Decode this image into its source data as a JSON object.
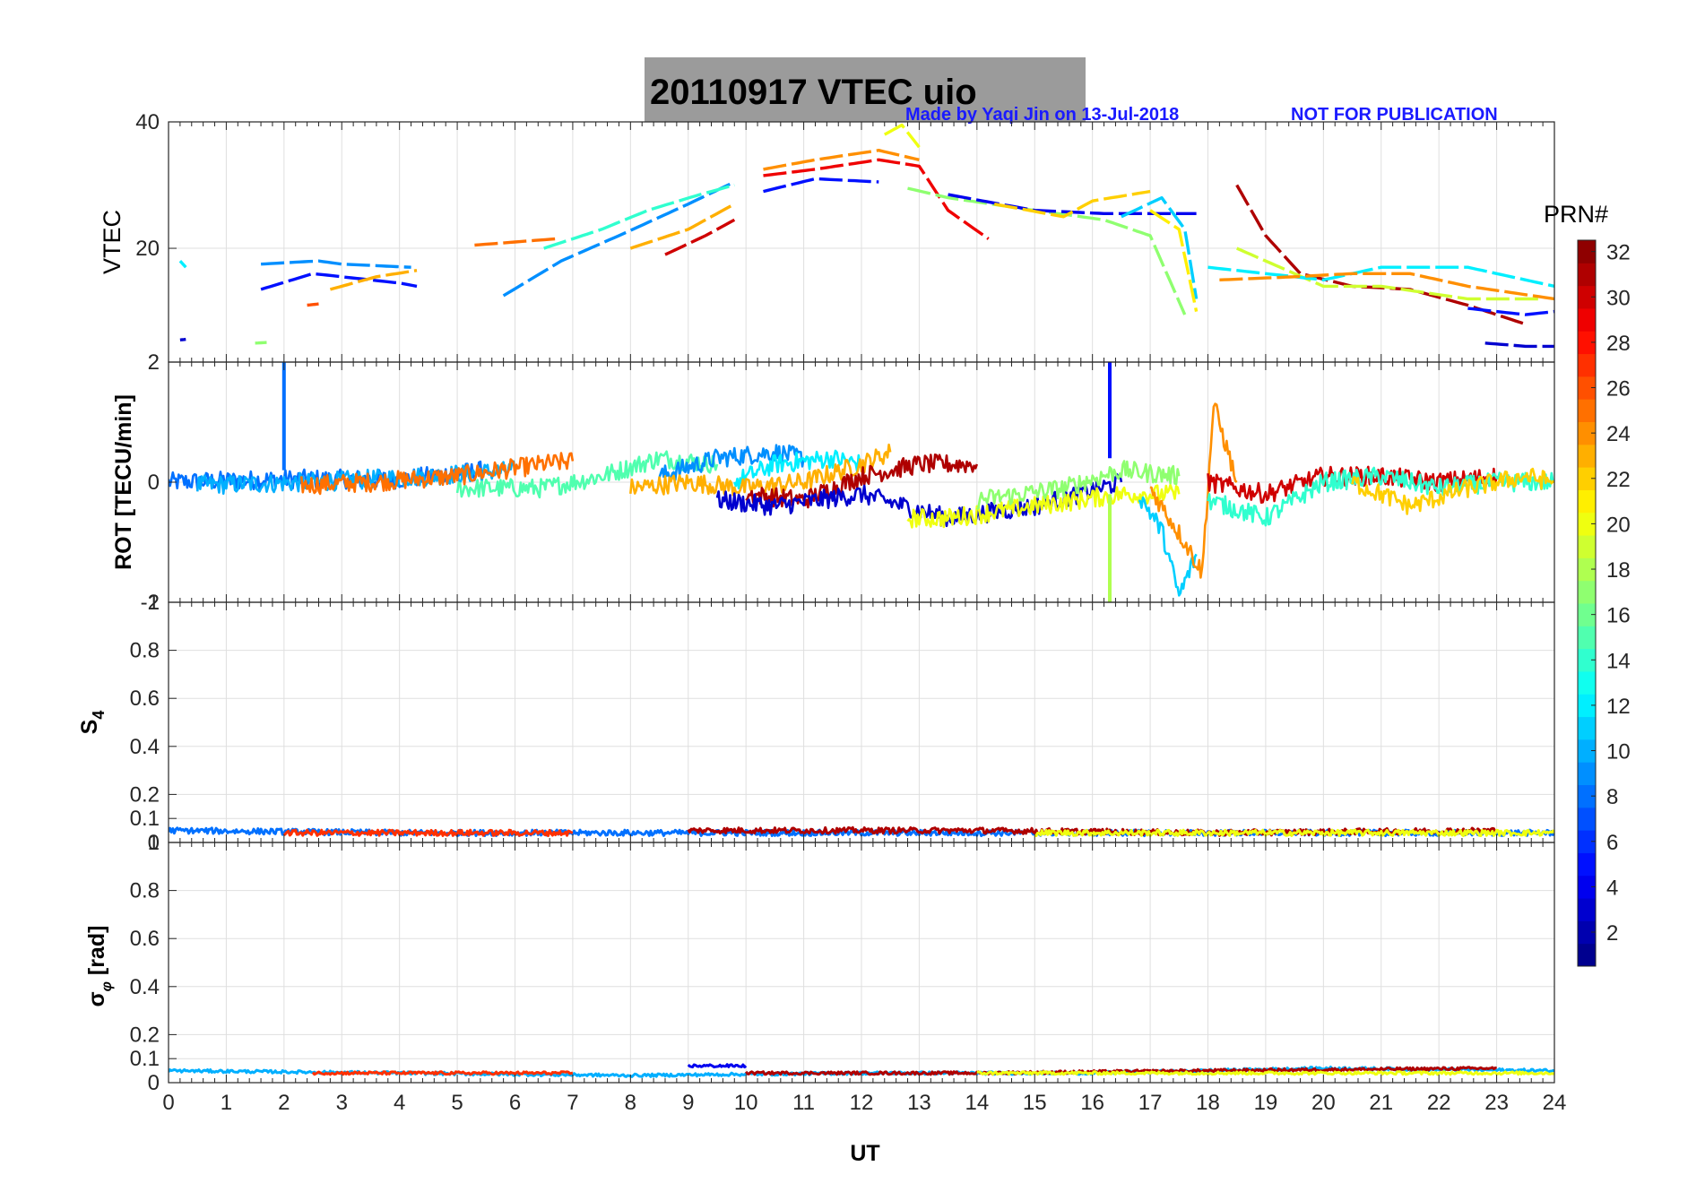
{
  "chart_data": [
    {
      "type": "line",
      "panel": "vtec",
      "title": "20110917    VTEC  uio",
      "annotation_left": "Made by Yaqi Jin on 13-Jul-2018",
      "annotation_right": "NOT FOR PUBLICATION",
      "ylabel": "VTEC",
      "ylim": [
        2,
        40
      ],
      "yticks": [
        20,
        40
      ],
      "xlim": [
        0,
        24
      ],
      "colorbar": {
        "label": "PRN#",
        "range": [
          1,
          32
        ],
        "ticks": [
          2,
          4,
          6,
          8,
          10,
          12,
          14,
          16,
          18,
          20,
          22,
          24,
          26,
          28,
          30,
          32
        ]
      },
      "series": [
        {
          "prn": 3,
          "x": [
            0.2,
            0.3
          ],
          "y": [
            5.5,
            5.6
          ]
        },
        {
          "prn": 12,
          "x": [
            0.2,
            0.3
          ],
          "y": [
            18,
            17
          ]
        },
        {
          "prn": 5,
          "x": [
            1.6,
            2.5,
            3.0,
            4.0,
            4.3
          ],
          "y": [
            13.5,
            16,
            15.5,
            14.5,
            14
          ]
        },
        {
          "prn": 9,
          "x": [
            1.6,
            2.6,
            3.0,
            4.2
          ],
          "y": [
            17.5,
            18,
            17.5,
            17
          ]
        },
        {
          "prn": 23,
          "x": [
            2.8,
            3.6,
            4.3
          ],
          "y": [
            13.5,
            15.5,
            16.5
          ]
        },
        {
          "prn": 26,
          "x": [
            2.4,
            2.6
          ],
          "y": [
            11,
            11.2
          ]
        },
        {
          "prn": 17,
          "x": [
            1.5,
            1.7
          ],
          "y": [
            5,
            5.1
          ]
        },
        {
          "prn": 25,
          "x": [
            5.3,
            6.0,
            6.7
          ],
          "y": [
            20.5,
            21,
            21.5
          ]
        },
        {
          "prn": 9,
          "x": [
            5.8,
            6.8,
            7.8,
            9.0,
            9.8
          ],
          "y": [
            12.5,
            18,
            22,
            27,
            30.5
          ]
        },
        {
          "prn": 14,
          "x": [
            6.5,
            7.5,
            8.3,
            9.2,
            9.8
          ],
          "y": [
            20,
            23,
            26,
            28.5,
            30
          ]
        },
        {
          "prn": 30,
          "x": [
            8.6,
            9.3,
            9.8
          ],
          "y": [
            19,
            22,
            24.5
          ]
        },
        {
          "prn": 23,
          "x": [
            8.0,
            9.0,
            9.8
          ],
          "y": [
            20,
            23,
            27
          ]
        },
        {
          "prn": 5,
          "x": [
            10.3,
            11.2,
            12.3
          ],
          "y": [
            29,
            31,
            30.5
          ]
        },
        {
          "prn": 29,
          "x": [
            10.3,
            11.2,
            12.3,
            13.0,
            13.5,
            14.2
          ],
          "y": [
            31.5,
            32.5,
            34,
            33,
            26,
            21.5
          ]
        },
        {
          "prn": 24,
          "x": [
            10.3,
            11.2,
            12.3,
            13.0
          ],
          "y": [
            32.5,
            34,
            35.5,
            34
          ]
        },
        {
          "prn": 20,
          "x": [
            12.4,
            12.7,
            13.0
          ],
          "y": [
            38,
            39.5,
            36
          ]
        },
        {
          "prn": 17,
          "x": [
            12.8,
            13.5,
            15.0,
            16.2,
            17.0,
            17.6
          ],
          "y": [
            29.5,
            28,
            26,
            24.5,
            22,
            9.5
          ]
        },
        {
          "prn": 4,
          "x": [
            13.5,
            15.0,
            16.2,
            17.8
          ],
          "y": [
            28.5,
            26,
            25.5,
            25.5
          ]
        },
        {
          "prn": 22,
          "x": [
            14.3,
            15.5,
            16.0,
            17.0
          ],
          "y": [
            27,
            25,
            27.5,
            29
          ]
        },
        {
          "prn": 11,
          "x": [
            16.5,
            17.2,
            17.6,
            17.8
          ],
          "y": [
            25,
            28,
            23,
            12
          ]
        },
        {
          "prn": 21,
          "x": [
            17.0,
            17.5,
            17.8
          ],
          "y": [
            26,
            23,
            10
          ]
        },
        {
          "prn": 31,
          "x": [
            18.5,
            19.0,
            19.6,
            20.5,
            21.5,
            22.5,
            23.5
          ],
          "y": [
            30,
            22,
            16,
            14,
            13.5,
            11,
            8
          ]
        },
        {
          "prn": 19,
          "x": [
            18.5,
            19.0,
            20.0,
            21.0,
            22.5,
            23.8
          ],
          "y": [
            20,
            18,
            14,
            14,
            12,
            12
          ]
        },
        {
          "prn": 12,
          "x": [
            18.0,
            19.0,
            20.0,
            21.0,
            22.5,
            24.0
          ],
          "y": [
            17,
            16,
            15,
            17,
            17,
            14
          ]
        },
        {
          "prn": 24,
          "x": [
            18.2,
            19.5,
            20.5,
            21.5,
            22.5,
            24.0
          ],
          "y": [
            15,
            15.5,
            16,
            16,
            14,
            12
          ]
        },
        {
          "prn": 5,
          "x": [
            22.5,
            23.5,
            24.0
          ],
          "y": [
            10.5,
            9.5,
            10
          ]
        },
        {
          "prn": 3,
          "x": [
            22.8,
            23.5,
            24.0
          ],
          "y": [
            5,
            4.5,
            4.5
          ]
        }
      ]
    },
    {
      "type": "line",
      "panel": "rot",
      "ylabel": "ROT [TECU/min]",
      "ylim": [
        -2,
        2
      ],
      "yticks": [
        -2,
        0,
        2
      ],
      "xlim": [
        0,
        24
      ],
      "series": [
        {
          "prn": 8,
          "x": [
            0.0,
            2.0,
            4.0,
            5.5
          ],
          "y": [
            0.0,
            0.05,
            0.05,
            0.2
          ]
        },
        {
          "prn": 10,
          "x": [
            0.5,
            2.5,
            4.5,
            6.0
          ],
          "y": [
            -0.05,
            0.0,
            0.1,
            0.2
          ]
        },
        {
          "prn": 25,
          "x": [
            2.3,
            3.5,
            5.0,
            6.5,
            7.0
          ],
          "y": [
            -0.05,
            0.0,
            0.1,
            0.3,
            0.35
          ]
        },
        {
          "prn": 15,
          "x": [
            5.0,
            6.5,
            7.5,
            8.5,
            9.5
          ],
          "y": [
            -0.1,
            -0.1,
            0.1,
            0.4,
            0.3
          ]
        },
        {
          "prn": 9,
          "x": [
            8.5,
            9.5,
            10.5,
            11.0
          ],
          "y": [
            0.1,
            0.4,
            0.5,
            0.4
          ]
        },
        {
          "prn": 12,
          "x": [
            9.8,
            10.5,
            11.5,
            12.0
          ],
          "y": [
            0.0,
            0.3,
            0.4,
            0.3
          ]
        },
        {
          "prn": 23,
          "x": [
            8.0,
            9.0,
            10.0,
            11.0,
            12.0,
            12.5
          ],
          "y": [
            -0.1,
            0.0,
            -0.1,
            0.0,
            0.3,
            0.5
          ]
        },
        {
          "prn": 31,
          "x": [
            10.0,
            11.0,
            12.0,
            13.0,
            14.0
          ],
          "y": [
            -0.2,
            -0.3,
            0.1,
            0.3,
            0.3
          ]
        },
        {
          "prn": 3,
          "x": [
            9.5,
            10.5,
            12.0,
            13.5,
            15.0,
            16.5
          ],
          "y": [
            -0.3,
            -0.4,
            -0.2,
            -0.6,
            -0.4,
            0.0
          ]
        },
        {
          "prn": 20,
          "x": [
            12.8,
            13.5,
            15.0,
            16.5,
            17.5
          ],
          "y": [
            -0.6,
            -0.6,
            -0.4,
            -0.2,
            -0.2
          ]
        },
        {
          "prn": 17,
          "x": [
            14.0,
            15.5,
            16.5,
            17.5
          ],
          "y": [
            -0.3,
            -0.1,
            0.2,
            0.1
          ]
        },
        {
          "prn": 11,
          "x": [
            16.8,
            17.2,
            17.5,
            17.8
          ],
          "y": [
            -0.2,
            -0.8,
            -1.9,
            -1.2
          ]
        },
        {
          "prn": 24,
          "x": [
            17.0,
            17.6,
            17.9,
            18.1,
            18.5
          ],
          "y": [
            -0.1,
            -1.0,
            -1.5,
            1.3,
            0.0
          ]
        },
        {
          "prn": 30,
          "x": [
            18.0,
            19.0,
            20.0,
            21.0,
            22.0,
            23.0
          ],
          "y": [
            0.0,
            -0.2,
            0.1,
            0.1,
            0.0,
            0.1
          ]
        },
        {
          "prn": 14,
          "x": [
            18.0,
            19.0,
            20.0,
            21.0,
            22.0,
            23.0,
            24.0
          ],
          "y": [
            -0.3,
            -0.6,
            0.0,
            0.1,
            -0.1,
            0.0,
            0.0
          ]
        },
        {
          "prn": 22,
          "x": [
            20.5,
            21.5,
            22.5,
            23.5,
            24.0
          ],
          "y": [
            0.0,
            -0.4,
            -0.1,
            0.1,
            0.0
          ]
        },
        {
          "prn": 8,
          "x": [
            2.0,
            2.0
          ],
          "y": [
            0.2,
            2.0
          ]
        },
        {
          "prn": 5,
          "x": [
            16.3,
            16.3
          ],
          "y": [
            0.4,
            2.0
          ]
        },
        {
          "prn": 18,
          "x": [
            16.3,
            16.3
          ],
          "y": [
            -0.2,
            -2.0
          ]
        }
      ]
    },
    {
      "type": "line",
      "panel": "s4",
      "ylabel": "S4",
      "ylim": [
        0,
        1
      ],
      "yticks": [
        0,
        0.1,
        0.2,
        0.4,
        0.6,
        0.8,
        1
      ],
      "xlim": [
        0,
        24
      ],
      "series": [
        {
          "prn": 8,
          "x": [
            0.0,
            4.0,
            8.0,
            12.0,
            16.0,
            20.0,
            24.0
          ],
          "y": [
            0.05,
            0.04,
            0.04,
            0.04,
            0.04,
            0.04,
            0.04
          ]
        },
        {
          "prn": 27,
          "x": [
            2.0,
            7.0
          ],
          "y": [
            0.04,
            0.04
          ]
        },
        {
          "prn": 31,
          "x": [
            9.0,
            14.0,
            18.0,
            23.0
          ],
          "y": [
            0.05,
            0.05,
            0.04,
            0.05
          ]
        },
        {
          "prn": 20,
          "x": [
            15.0,
            24.0
          ],
          "y": [
            0.04,
            0.04
          ]
        }
      ]
    },
    {
      "type": "line",
      "panel": "sigma_phi",
      "ylabel": "σφ [rad]",
      "xlabel": "UT",
      "ylim": [
        0,
        1
      ],
      "yticks": [
        0,
        0.1,
        0.2,
        0.4,
        0.6,
        0.8,
        1
      ],
      "xlim": [
        0,
        24
      ],
      "xticks": [
        0,
        1,
        2,
        3,
        4,
        5,
        6,
        7,
        8,
        9,
        10,
        11,
        12,
        13,
        14,
        15,
        16,
        17,
        18,
        19,
        20,
        21,
        22,
        23,
        24
      ],
      "series": [
        {
          "prn": 10,
          "x": [
            0.0,
            4.0,
            8.0,
            12.0,
            16.0,
            20.0,
            24.0
          ],
          "y": [
            0.05,
            0.04,
            0.03,
            0.04,
            0.04,
            0.06,
            0.05
          ]
        },
        {
          "prn": 27,
          "x": [
            2.5,
            7.0
          ],
          "y": [
            0.04,
            0.04
          ]
        },
        {
          "prn": 4,
          "x": [
            9.0,
            10.0
          ],
          "y": [
            0.07,
            0.07
          ]
        },
        {
          "prn": 31,
          "x": [
            10.0,
            14.0,
            18.0,
            23.0
          ],
          "y": [
            0.04,
            0.04,
            0.05,
            0.06
          ]
        },
        {
          "prn": 20,
          "x": [
            14.0,
            24.0
          ],
          "y": [
            0.04,
            0.04
          ]
        }
      ]
    }
  ]
}
